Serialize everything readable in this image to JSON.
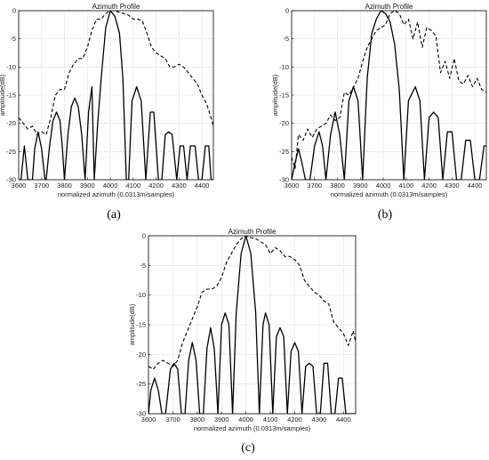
{
  "figure": {
    "captions": [
      "(a)",
      "(b)",
      "(c)"
    ]
  },
  "chart_data": [
    {
      "type": "line",
      "panel": "a",
      "title": "Azimuth Profile",
      "xlabel": "normalized azimuth (0.0313m/samples)",
      "ylabel": "amplitude(dB)",
      "xlim": [
        3600,
        4450
      ],
      "ylim": [
        -30,
        0
      ],
      "xticks": [
        3600,
        3700,
        3800,
        3900,
        4000,
        4100,
        4200,
        4300,
        4400
      ],
      "yticks": [
        0,
        -5,
        -10,
        -15,
        -20,
        -25,
        -30
      ],
      "grid": true,
      "series": [
        {
          "style": "dashed",
          "x": [
            3600,
            3620,
            3640,
            3660,
            3680,
            3700,
            3720,
            3740,
            3760,
            3780,
            3800,
            3820,
            3840,
            3860,
            3880,
            3900,
            3920,
            3940,
            3960,
            3980,
            4000,
            4020,
            4040,
            4060,
            4080,
            4100,
            4120,
            4140,
            4160,
            4180,
            4200,
            4220,
            4240,
            4260,
            4280,
            4300,
            4320,
            4340,
            4360,
            4380,
            4400,
            4420,
            4440,
            4450
          ],
          "y": [
            -19,
            -20,
            -21,
            -20.5,
            -22,
            -21.5,
            -22,
            -19,
            -15,
            -14,
            -14,
            -11,
            -9.5,
            -8.5,
            -8.5,
            -6.5,
            -3.5,
            -1.5,
            -1.5,
            -0.5,
            0,
            0,
            -0.3,
            -0.5,
            -0.8,
            -1.5,
            -1.5,
            -1.8,
            -4,
            -6.5,
            -7.5,
            -8,
            -8.5,
            -10,
            -10,
            -9.5,
            -10,
            -11,
            -12,
            -13,
            -15,
            -16.5,
            -19,
            -20.5
          ]
        },
        {
          "style": "solid",
          "x": [
            3600,
            3610,
            3625,
            3640,
            3655,
            3660,
            3670,
            3685,
            3700,
            3715,
            3720,
            3735,
            3750,
            3765,
            3780,
            3790,
            3800,
            3815,
            3830,
            3845,
            3860,
            3875,
            3890,
            3905,
            3920,
            3930,
            3945,
            3960,
            3980,
            4000,
            4020,
            4040,
            4055,
            4070,
            4080,
            4095,
            4115,
            4135,
            4155,
            4175,
            4190,
            4210,
            4225,
            4240,
            4255,
            4270,
            4290,
            4305,
            4320,
            4335,
            4350,
            4370,
            4385,
            4400,
            4415,
            4430,
            4440,
            4450
          ],
          "y": [
            -30,
            -30,
            -24,
            -30,
            -30,
            -30,
            -24.5,
            -21.5,
            -24.5,
            -30,
            -30,
            -24,
            -19.5,
            -18,
            -19.5,
            -24,
            -30,
            -22,
            -17,
            -15.5,
            -17,
            -22,
            -30,
            -18,
            -13.5,
            -30,
            -20,
            -12,
            -3,
            0,
            -1,
            -4,
            -12,
            -30,
            -30,
            -16,
            -13.5,
            -16,
            -30,
            -18,
            -18,
            -30,
            -30,
            -22,
            -21.5,
            -22,
            -30,
            -24,
            -24,
            -30,
            -24,
            -24,
            -30,
            -30,
            -24,
            -24,
            -30,
            -30
          ]
        }
      ]
    },
    {
      "type": "line",
      "panel": "b",
      "title": "Azimuth Profile",
      "xlabel": "normalized azimuth (0.0313m/samples)",
      "ylabel": "amplitude(dB)",
      "xlim": [
        3600,
        4450
      ],
      "ylim": [
        -30,
        0
      ],
      "xticks": [
        3600,
        3700,
        3800,
        3900,
        4000,
        4100,
        4200,
        4300,
        4400
      ],
      "yticks": [
        0,
        -5,
        -10,
        -15,
        -20,
        -25,
        -30
      ],
      "grid": true,
      "series": [
        {
          "style": "dashed",
          "x": [
            3600,
            3615,
            3630,
            3650,
            3670,
            3690,
            3710,
            3730,
            3750,
            3770,
            3790,
            3810,
            3830,
            3850,
            3870,
            3890,
            3910,
            3930,
            3950,
            3970,
            3990,
            4010,
            4030,
            4050,
            4070,
            4090,
            4110,
            4130,
            4150,
            4170,
            4190,
            4210,
            4230,
            4250,
            4270,
            4290,
            4310,
            4330,
            4350,
            4370,
            4390,
            4410,
            4430,
            4450
          ],
          "y": [
            -26,
            -28,
            -22,
            -23,
            -21,
            -22.5,
            -21,
            -20.5,
            -20,
            -18.5,
            -19.5,
            -19,
            -14.5,
            -15,
            -13.5,
            -12,
            -9,
            -6.5,
            -5,
            -3.5,
            -3,
            -2.5,
            -0.5,
            0,
            -0.5,
            -2.5,
            -1.5,
            -5,
            -2,
            -6.5,
            -3,
            -3.5,
            -4.5,
            -11,
            -9,
            -12,
            -8.5,
            -12.5,
            -13,
            -11.5,
            -13.5,
            -12,
            -14,
            -14.5
          ]
        },
        {
          "style": "solid",
          "x": [
            3600,
            3615,
            3630,
            3645,
            3660,
            3680,
            3700,
            3720,
            3735,
            3750,
            3770,
            3790,
            3810,
            3830,
            3850,
            3870,
            3890,
            3910,
            3930,
            3950,
            3970,
            3990,
            4010,
            4030,
            4050,
            4070,
            4090,
            4110,
            4140,
            4160,
            4180,
            4200,
            4220,
            4240,
            4260,
            4280,
            4300,
            4320,
            4340,
            4360,
            4380,
            4400,
            4420,
            4440,
            4450
          ],
          "y": [
            -30,
            -27,
            -24.5,
            -27,
            -30,
            -30,
            -24,
            -21.5,
            -24,
            -30,
            -22,
            -18,
            -22,
            -30,
            -16,
            -13.5,
            -16,
            -30,
            -12,
            -4,
            -1.5,
            0,
            -0.5,
            -2,
            -6,
            -14,
            -30,
            -16,
            -13.5,
            -16,
            -30,
            -19,
            -18,
            -19,
            -30,
            -21.5,
            -21.5,
            -30,
            -30,
            -23,
            -23,
            -30,
            -30,
            -24,
            -24
          ]
        }
      ]
    },
    {
      "type": "line",
      "panel": "c",
      "title": "Azimuth Profile",
      "xlabel": "normalized azimuth (0.0313m/samples)",
      "ylabel": "amplitude(dB)",
      "xlim": [
        3600,
        4450
      ],
      "ylim": [
        -30,
        0
      ],
      "xticks": [
        3600,
        3700,
        3800,
        3900,
        4000,
        4100,
        4200,
        4300,
        4400
      ],
      "yticks": [
        0,
        -5,
        -10,
        -15,
        -20,
        -25,
        -30
      ],
      "grid": true,
      "series": [
        {
          "style": "dashed",
          "x": [
            3600,
            3620,
            3640,
            3660,
            3680,
            3700,
            3720,
            3740,
            3760,
            3780,
            3800,
            3820,
            3840,
            3860,
            3880,
            3900,
            3920,
            3940,
            3960,
            3980,
            4000,
            4020,
            4040,
            4060,
            4080,
            4100,
            4120,
            4140,
            4160,
            4180,
            4200,
            4220,
            4240,
            4260,
            4280,
            4300,
            4320,
            4340,
            4360,
            4380,
            4400,
            4420,
            4440,
            4450
          ],
          "y": [
            -22,
            -22.5,
            -21.5,
            -21,
            -21.5,
            -22,
            -21,
            -18,
            -16,
            -14,
            -12,
            -9.5,
            -9,
            -9,
            -8.5,
            -7,
            -4.5,
            -3,
            -1.5,
            -0.5,
            0,
            -0.3,
            -0.5,
            -1,
            -1.5,
            -3,
            -2,
            -2.5,
            -3.5,
            -3.5,
            -4,
            -5,
            -7.5,
            -8.5,
            -9.5,
            -10,
            -11,
            -11.5,
            -14.5,
            -15.5,
            -16.5,
            -18.5,
            -16,
            -18
          ]
        },
        {
          "style": "solid",
          "x": [
            3600,
            3610,
            3625,
            3640,
            3655,
            3670,
            3690,
            3705,
            3720,
            3735,
            3750,
            3765,
            3780,
            3795,
            3810,
            3825,
            3840,
            3855,
            3870,
            3885,
            3900,
            3915,
            3930,
            3945,
            3960,
            3980,
            4000,
            4020,
            4040,
            4055,
            4070,
            4080,
            4095,
            4110,
            4125,
            4140,
            4155,
            4170,
            4185,
            4200,
            4215,
            4230,
            4245,
            4260,
            4275,
            4290,
            4305,
            4320,
            4335,
            4350,
            4365,
            4380,
            4395,
            4410,
            4425,
            4440,
            4450
          ],
          "y": [
            -30,
            -26,
            -24,
            -26,
            -30,
            -30,
            -22.5,
            -21.5,
            -22.5,
            -30,
            -30,
            -21,
            -18,
            -21,
            -30,
            -30,
            -19,
            -15.5,
            -19,
            -30,
            -15,
            -13,
            -15,
            -30,
            -13,
            -3,
            0,
            -3,
            -13,
            -30,
            -15,
            -13,
            -15,
            -30,
            -17,
            -15.5,
            -17,
            -30,
            -19.5,
            -18,
            -19.5,
            -30,
            -22,
            -21.5,
            -22,
            -30,
            -30,
            -21.5,
            -21.5,
            -30,
            -30,
            -24,
            -24,
            -30,
            -30,
            -30,
            -30
          ]
        }
      ]
    }
  ]
}
